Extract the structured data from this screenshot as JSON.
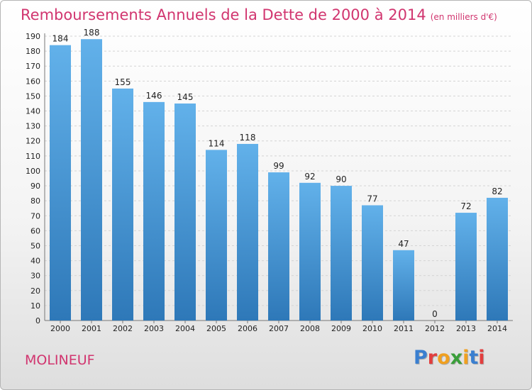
{
  "header": {
    "title": "Remboursements Annuels de la Dette de 2000 à 2014",
    "unit": "(en milliers d'€)"
  },
  "footer": {
    "commune": "MOLINEUF",
    "logo_letters": [
      "P",
      "r",
      "o",
      "x",
      "i",
      "t",
      "i"
    ]
  },
  "colors": {
    "title": "#d1356f",
    "bar_top": "#62b1ea",
    "bar_bottom": "#2e78b8",
    "logo": [
      "#3a7fd0",
      "#e23e3e",
      "#f0a020",
      "#3a9e3a",
      "#f0a020",
      "#3a7fd0",
      "#e23e3e"
    ]
  },
  "chart_data": {
    "type": "bar",
    "title": "Remboursements Annuels de la Dette de 2000 à 2014",
    "xlabel": "",
    "ylabel": "(en milliers d'€)",
    "ylim": [
      0,
      190
    ],
    "yticks": [
      0,
      10,
      20,
      30,
      40,
      50,
      60,
      70,
      80,
      90,
      100,
      110,
      120,
      130,
      140,
      150,
      160,
      170,
      180,
      190
    ],
    "grid": true,
    "categories": [
      "2000",
      "2001",
      "2002",
      "2003",
      "2004",
      "2005",
      "2006",
      "2007",
      "2008",
      "2009",
      "2010",
      "2011",
      "2012",
      "2013",
      "2014"
    ],
    "values": [
      184,
      188,
      155,
      146,
      145,
      114,
      118,
      99,
      92,
      90,
      77,
      47,
      0,
      72,
      82
    ]
  }
}
